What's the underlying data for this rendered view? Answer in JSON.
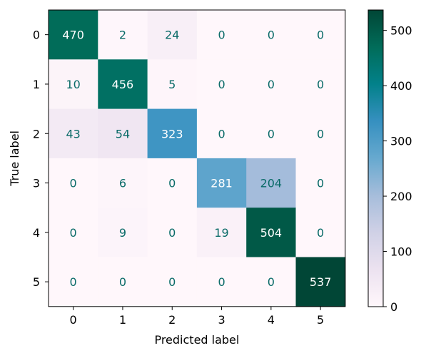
{
  "chart_data": {
    "type": "heatmap",
    "title": "",
    "xlabel": "Predicted label",
    "ylabel": "True label",
    "x_categories": [
      "0",
      "1",
      "2",
      "3",
      "4",
      "5"
    ],
    "y_categories": [
      "0",
      "1",
      "2",
      "3",
      "4",
      "5"
    ],
    "matrix": [
      [
        470,
        2,
        24,
        0,
        0,
        0
      ],
      [
        10,
        456,
        5,
        0,
        0,
        0
      ],
      [
        43,
        54,
        323,
        0,
        0,
        0
      ],
      [
        0,
        6,
        0,
        281,
        204,
        0
      ],
      [
        0,
        9,
        0,
        19,
        504,
        0
      ],
      [
        0,
        0,
        0,
        0,
        0,
        537
      ]
    ],
    "colormap": "PuBuGn",
    "colormap_stops": [
      "#fff7fb",
      "#ece2f0",
      "#d0d1e6",
      "#a6bddb",
      "#67a9cf",
      "#3690c0",
      "#02818a",
      "#016c59",
      "#014636"
    ],
    "text_color_light": "#ffffff",
    "text_color_dark": "#0a6b68",
    "vmin": 0,
    "vmax": 537,
    "colorbar_ticks": [
      "0",
      "100",
      "200",
      "300",
      "400",
      "500"
    ],
    "grid": false
  }
}
